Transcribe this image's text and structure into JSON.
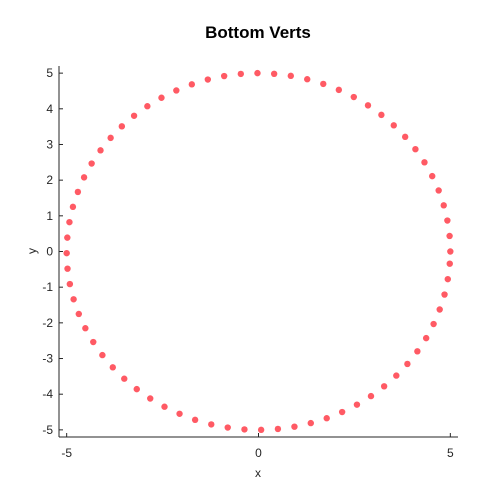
{
  "chart_data": {
    "type": "scatter",
    "title": "Bottom Verts",
    "xlabel": "x",
    "ylabel": "y",
    "xlim": [
      -5.2,
      5.2
    ],
    "ylim": [
      -5.2,
      5.2
    ],
    "x_ticks": [
      -5,
      0,
      5
    ],
    "y_ticks": [
      -5,
      -4,
      -3,
      -2,
      -1,
      0,
      1,
      2,
      3,
      4,
      5
    ],
    "grid": false,
    "legend": "none",
    "marker_color": "#ff5a64",
    "series": [
      {
        "x": [
          5.0,
          4.981,
          4.923,
          4.828,
          4.696,
          4.528,
          4.326,
          4.09,
          3.823,
          3.526,
          3.203,
          2.854,
          2.484,
          2.094,
          1.688,
          1.27,
          0.842,
          0.408,
          -0.027,
          -0.461,
          -0.895,
          -1.321,
          -1.738,
          -2.142,
          -2.529,
          -2.897,
          -3.243,
          -3.562,
          -3.854,
          -4.118,
          -4.349,
          -4.546,
          -4.708,
          -4.837,
          -4.928,
          -4.983,
          -5.0,
          -4.978,
          -4.917,
          -4.819,
          -4.684,
          -4.513,
          -4.307,
          -4.069,
          -3.798,
          -3.499,
          -3.173,
          -2.822,
          -2.45,
          -2.058,
          -1.652,
          -1.231,
          -0.802,
          -0.366,
          0.069,
          0.506,
          0.937,
          1.363,
          1.778,
          2.18,
          2.566,
          2.932,
          3.275,
          3.592,
          3.881,
          4.141,
          4.37,
          4.564,
          4.723,
          4.849,
          4.934,
          4.985
        ],
        "y": [
          0.0,
          0.435,
          0.868,
          1.294,
          1.711,
          2.113,
          2.5,
          2.868,
          3.214,
          3.536,
          3.83,
          4.096,
          4.33,
          4.531,
          4.698,
          4.829,
          4.924,
          4.981,
          5.0,
          4.978,
          4.918,
          4.821,
          4.686,
          4.514,
          4.31,
          4.073,
          3.805,
          3.509,
          3.185,
          2.836,
          2.466,
          2.078,
          1.67,
          1.252,
          0.823,
          0.389,
          -0.046,
          -0.482,
          -0.913,
          -1.339,
          -1.751,
          -2.151,
          -2.538,
          -2.904,
          -3.247,
          -3.566,
          -3.858,
          -4.121,
          -4.351,
          -4.549,
          -4.719,
          -4.847,
          -4.935,
          -4.987,
          -4.999,
          -4.974,
          -4.911,
          -4.81,
          -4.673,
          -4.5,
          -4.293,
          -4.053,
          -3.779,
          -3.479,
          -3.152,
          -2.798,
          -2.428,
          -2.033,
          -1.626,
          -1.207,
          -0.775,
          -0.342
        ]
      }
    ]
  }
}
